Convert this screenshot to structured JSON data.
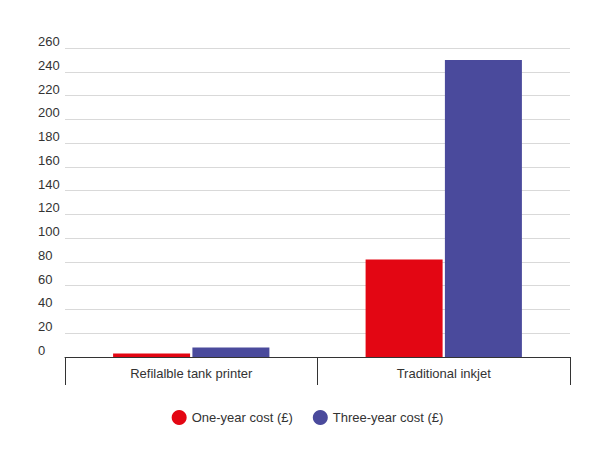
{
  "chart_data": {
    "type": "bar",
    "categories": [
      "Refilalble tank printer",
      "Traditional inkjet"
    ],
    "series": [
      {
        "name": "One-year cost (£)",
        "color": "#e30613",
        "values": [
          3,
          82
        ]
      },
      {
        "name": "Three-year cost (£)",
        "color": "#4a4a9c",
        "values": [
          8,
          250
        ]
      }
    ],
    "ylim": [
      0,
      260
    ],
    "yticks": [
      0,
      20,
      40,
      60,
      80,
      100,
      120,
      140,
      160,
      180,
      200,
      220,
      240,
      260
    ],
    "grid": true,
    "legend": "bottom"
  }
}
